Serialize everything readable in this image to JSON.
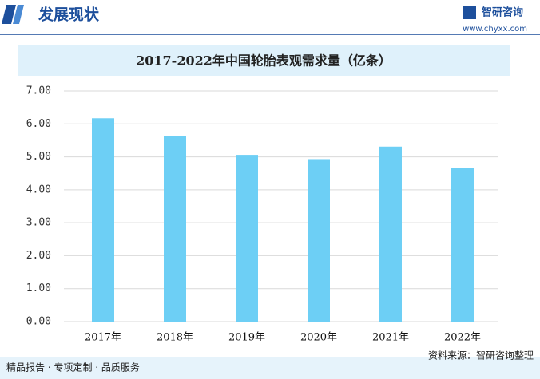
{
  "header": {
    "title": "发展现状",
    "brand": "智研咨询",
    "url": "www.chyxx.com"
  },
  "chart_data": {
    "type": "bar",
    "title": "2017-2022年中国轮胎表观需求量（亿条）",
    "categories": [
      "2017年",
      "2018年",
      "2019年",
      "2020年",
      "2021年",
      "2022年"
    ],
    "values": [
      6.17,
      5.62,
      5.06,
      4.93,
      5.31,
      4.67
    ],
    "color": "#6dcff5",
    "ylim": [
      0,
      7
    ],
    "yticks": [
      {
        "value": 0,
        "label": "0.00"
      },
      {
        "value": 1,
        "label": "1.00"
      },
      {
        "value": 2,
        "label": "2.00"
      },
      {
        "value": 3,
        "label": "3.00"
      },
      {
        "value": 4,
        "label": "4.00"
      },
      {
        "value": 5,
        "label": "5.00"
      },
      {
        "value": 6,
        "label": "6.00"
      },
      {
        "value": 7,
        "label": "7.00"
      }
    ],
    "grid": true
  },
  "footer": {
    "slogan": "精品报告 · 专项定制 · 品质服务",
    "source": "资料来源：智研咨询整理"
  }
}
